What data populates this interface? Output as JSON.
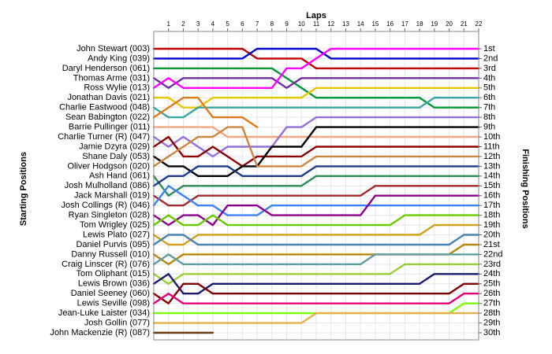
{
  "chart_data": {
    "type": "line",
    "title": "Laps",
    "y_label": "Starting Positions",
    "y2_label": "Finishing Positions",
    "x": [
      0,
      1,
      2,
      3,
      4,
      5,
      6,
      7,
      8,
      9,
      10,
      11,
      12,
      13,
      14,
      15,
      16,
      17,
      18,
      19,
      20,
      21,
      22
    ],
    "xlim": [
      0,
      22
    ],
    "xticks": [
      1,
      2,
      3,
      4,
      5,
      6,
      7,
      8,
      9,
      10,
      11,
      12,
      13,
      14,
      15,
      16,
      17,
      18,
      19,
      20,
      21,
      22
    ],
    "ylim": [
      1,
      30
    ],
    "yticks": [
      {
        "value": 1,
        "label": "1st"
      },
      {
        "value": 2,
        "label": "2nd"
      },
      {
        "value": 3,
        "label": "3rd"
      },
      {
        "value": 4,
        "label": "4th"
      },
      {
        "value": 5,
        "label": "5th"
      },
      {
        "value": 6,
        "label": "6th"
      },
      {
        "value": 7,
        "label": "7th"
      },
      {
        "value": 8,
        "label": "8th"
      },
      {
        "value": 9,
        "label": "9th"
      },
      {
        "value": 10,
        "label": "10th"
      },
      {
        "value": 11,
        "label": "11th"
      },
      {
        "value": 12,
        "label": "12th"
      },
      {
        "value": 13,
        "label": "13th"
      },
      {
        "value": 14,
        "label": "14th"
      },
      {
        "value": 15,
        "label": "15th"
      },
      {
        "value": 16,
        "label": "16th"
      },
      {
        "value": 17,
        "label": "17th"
      },
      {
        "value": 18,
        "label": "18th"
      },
      {
        "value": 19,
        "label": "19th"
      },
      {
        "value": 20,
        "label": "20th"
      },
      {
        "value": 21,
        "label": "21st"
      },
      {
        "value": 22,
        "label": "22nd"
      },
      {
        "value": 23,
        "label": "23rd"
      },
      {
        "value": 24,
        "label": "24th"
      },
      {
        "value": 25,
        "label": "25th"
      },
      {
        "value": 26,
        "label": "26th"
      },
      {
        "value": 27,
        "label": "27th"
      },
      {
        "value": 28,
        "label": "28th"
      },
      {
        "value": 29,
        "label": "29th"
      },
      {
        "value": 30,
        "label": "30th"
      }
    ],
    "grid": true,
    "series": [
      {
        "name": "John Stewart (003)",
        "color": "#c00000",
        "values": [
          1,
          1,
          1,
          1,
          1,
          1,
          1,
          2,
          2,
          2,
          2,
          3,
          3,
          3,
          3,
          3,
          3,
          3,
          3,
          3,
          3,
          3,
          3
        ]
      },
      {
        "name": "Andy King (039)",
        "color": "#0000cc",
        "values": [
          2,
          2,
          2,
          2,
          2,
          2,
          2,
          1,
          1,
          1,
          1,
          1,
          2,
          2,
          2,
          2,
          2,
          2,
          2,
          2,
          2,
          2,
          2
        ]
      },
      {
        "name": "Daryl Henderson (061)",
        "color": "#009933",
        "values": [
          3,
          3,
          3,
          3,
          3,
          3,
          3,
          3,
          3,
          4,
          5,
          6,
          6,
          6,
          6,
          6,
          6,
          6,
          6,
          7,
          7,
          7,
          7
        ]
      },
      {
        "name": "Thomas Arme (031)",
        "color": "#7030a0",
        "values": [
          4,
          5,
          4,
          4,
          4,
          4,
          4,
          4,
          4,
          5,
          4,
          4,
          4,
          4,
          4,
          4,
          4,
          4,
          4,
          4,
          4,
          4,
          4
        ]
      },
      {
        "name": "Ross Wylie (013)",
        "color": "#ff00ff",
        "values": [
          5,
          4,
          5,
          5,
          5,
          5,
          5,
          5,
          5,
          3,
          3,
          2,
          1,
          1,
          1,
          1,
          1,
          1,
          1,
          1,
          1,
          1,
          1
        ]
      },
      {
        "name": "Jonathan Davis (021)",
        "color": "#e6c800",
        "values": [
          6,
          6,
          7,
          7,
          6,
          6,
          6,
          6,
          6,
          6,
          6,
          5,
          5,
          5,
          5,
          5,
          5,
          5,
          5,
          5,
          5,
          5,
          5
        ]
      },
      {
        "name": "Charlie Eastwood (048)",
        "color": "#3aa6a0",
        "values": [
          7,
          8,
          8,
          7,
          7,
          7,
          7,
          7,
          7,
          7,
          7,
          7,
          7,
          7,
          7,
          7,
          7,
          7,
          7,
          6,
          6,
          6,
          6
        ]
      },
      {
        "name": "Sean Babington (022)",
        "color": "#e07b1a",
        "values": [
          8,
          7,
          6,
          6,
          8,
          8,
          8,
          9,
          null,
          null,
          null,
          null,
          null,
          null,
          null,
          null,
          null,
          null,
          null,
          null,
          null,
          null,
          null
        ]
      },
      {
        "name": "Barrie Pullinger (011)",
        "color": "#f4a582",
        "values": [
          9,
          9,
          9,
          9,
          9,
          10,
          10,
          10,
          10,
          10,
          10,
          10,
          10,
          10,
          10,
          10,
          10,
          10,
          10,
          10,
          10,
          10,
          10
        ]
      },
      {
        "name": "Charlie Turner (R) (047)",
        "color": "#9370db",
        "values": [
          10,
          11,
          10,
          11,
          12,
          11,
          11,
          11,
          11,
          9,
          9,
          8,
          8,
          8,
          8,
          8,
          8,
          8,
          8,
          8,
          8,
          8,
          8
        ]
      },
      {
        "name": "Jamie Dzyra (029)",
        "color": "#8b0000",
        "values": [
          11,
          10,
          12,
          12,
          11,
          12,
          13,
          12,
          12,
          12,
          12,
          11,
          11,
          11,
          11,
          11,
          11,
          11,
          11,
          11,
          11,
          11,
          11
        ]
      },
      {
        "name": "Shane Daly (053)",
        "color": "#000000",
        "values": [
          12,
          13,
          13,
          14,
          14,
          14,
          13,
          13,
          11,
          11,
          11,
          9,
          9,
          9,
          9,
          9,
          9,
          9,
          9,
          9,
          9,
          9,
          9
        ]
      },
      {
        "name": "Oliver Hodgson (020)",
        "color": "#cd853f",
        "values": [
          13,
          12,
          11,
          10,
          10,
          9,
          9,
          13,
          13,
          13,
          13,
          12,
          12,
          12,
          12,
          12,
          12,
          12,
          12,
          12,
          12,
          12,
          12
        ]
      },
      {
        "name": "Ash Hand (061)",
        "color": "#2e8b57",
        "values": [
          14,
          16,
          15,
          15,
          15,
          15,
          15,
          15,
          15,
          15,
          15,
          14,
          14,
          14,
          14,
          14,
          14,
          14,
          14,
          14,
          14,
          14,
          14
        ]
      },
      {
        "name": "Josh Mulholland (086)",
        "color": "#1e3a8a",
        "values": [
          15,
          14,
          14,
          13,
          13,
          13,
          14,
          14,
          14,
          14,
          14,
          13,
          13,
          13,
          13,
          13,
          13,
          13,
          13,
          13,
          13,
          13,
          13
        ]
      },
      {
        "name": "Jack Marshall (019)",
        "color": "#a52a2a",
        "values": [
          16,
          17,
          17,
          16,
          16,
          16,
          16,
          16,
          16,
          16,
          16,
          16,
          16,
          16,
          16,
          15,
          15,
          15,
          15,
          15,
          15,
          15,
          15
        ]
      },
      {
        "name": "Josh Collings (R) (046)",
        "color": "#3b82f6",
        "values": [
          17,
          15,
          16,
          17,
          17,
          18,
          18,
          18,
          17,
          17,
          17,
          17,
          17,
          17,
          17,
          17,
          17,
          17,
          17,
          17,
          17,
          17,
          17
        ]
      },
      {
        "name": "Ryan Singleton (028)",
        "color": "#8b008b",
        "values": [
          18,
          19,
          18,
          18,
          19,
          17,
          17,
          17,
          18,
          18,
          18,
          18,
          18,
          18,
          18,
          16,
          16,
          16,
          16,
          16,
          16,
          16,
          16
        ]
      },
      {
        "name": "Tom Wrigley (025)",
        "color": "#66cc00",
        "values": [
          19,
          18,
          19,
          19,
          18,
          19,
          19,
          19,
          19,
          19,
          19,
          19,
          19,
          19,
          19,
          19,
          19,
          18,
          18,
          18,
          18,
          18,
          18
        ]
      },
      {
        "name": "Lewis Plato (027)",
        "color": "#d4a017",
        "values": [
          20,
          21,
          21,
          20,
          20,
          20,
          20,
          20,
          20,
          20,
          20,
          20,
          20,
          20,
          20,
          20,
          20,
          20,
          20,
          19,
          19,
          19,
          19
        ]
      },
      {
        "name": "Daniel Purvis (095)",
        "color": "#4682b4",
        "values": [
          21,
          20,
          20,
          21,
          21,
          21,
          21,
          21,
          21,
          21,
          21,
          21,
          21,
          21,
          21,
          21,
          21,
          21,
          21,
          21,
          21,
          20,
          20
        ]
      },
      {
        "name": "Danny Russell (010)",
        "color": "#b8860b",
        "values": [
          22,
          23,
          22,
          22,
          22,
          22,
          22,
          22,
          22,
          22,
          22,
          22,
          22,
          22,
          22,
          22,
          22,
          22,
          22,
          22,
          22,
          21,
          21
        ]
      },
      {
        "name": "Craig Linscer  (R) (076)",
        "color": "#5f9ea0",
        "values": [
          23,
          22,
          23,
          23,
          23,
          23,
          23,
          23,
          23,
          23,
          23,
          23,
          23,
          23,
          23,
          22,
          22,
          22,
          22,
          22,
          22,
          22,
          22
        ]
      },
      {
        "name": "Tom Oliphant (015)",
        "color": "#9acd32",
        "values": [
          24,
          25,
          24,
          24,
          24,
          24,
          24,
          24,
          24,
          24,
          24,
          24,
          24,
          24,
          24,
          24,
          24,
          23,
          23,
          23,
          23,
          23,
          23
        ]
      },
      {
        "name": "Lewis Brown (036)",
        "color": "#191970",
        "values": [
          25,
          24,
          26,
          26,
          25,
          25,
          25,
          25,
          25,
          25,
          25,
          25,
          25,
          25,
          25,
          25,
          25,
          25,
          25,
          24,
          24,
          24,
          24
        ]
      },
      {
        "name": "Daniel Seeney (060)",
        "color": "#800000",
        "values": [
          26,
          27,
          25,
          25,
          26,
          26,
          26,
          26,
          26,
          26,
          26,
          26,
          26,
          26,
          26,
          26,
          26,
          26,
          26,
          26,
          26,
          25,
          25
        ]
      },
      {
        "name": "Lewis Seville (098)",
        "color": "#e3007a",
        "values": [
          27,
          26,
          27,
          27,
          27,
          27,
          27,
          27,
          27,
          27,
          27,
          27,
          27,
          27,
          27,
          27,
          27,
          27,
          27,
          27,
          27,
          26,
          26
        ]
      },
      {
        "name": "Jean-Luke Laister (034)",
        "color": "#7cfc00",
        "values": [
          28,
          28,
          28,
          28,
          28,
          28,
          28,
          28,
          28,
          28,
          28,
          28,
          28,
          28,
          28,
          28,
          28,
          28,
          28,
          28,
          28,
          27,
          27
        ]
      },
      {
        "name": "Josh Gollin (077)",
        "color": "#e8b04a",
        "values": [
          29,
          29,
          29,
          29,
          29,
          29,
          29,
          29,
          29,
          29,
          29,
          28,
          28,
          28,
          28,
          28,
          28,
          28,
          28,
          28,
          28,
          28,
          28
        ]
      },
      {
        "name": "John Mackenzie (R) (087)",
        "color": "#6b3a10",
        "values": [
          30,
          30,
          30,
          30,
          30,
          null,
          null,
          null,
          null,
          null,
          null,
          null,
          null,
          null,
          null,
          null,
          null,
          null,
          null,
          null,
          null,
          null,
          null
        ]
      }
    ]
  }
}
